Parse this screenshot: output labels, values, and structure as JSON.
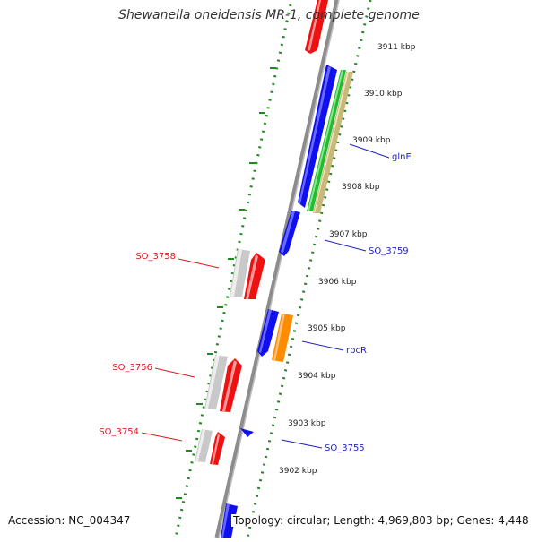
{
  "title": "Shewanella oneidensis MR-1, complete genome",
  "accession": "Accession: NC_004347",
  "topology": "Topology: circular; Length: 4,969,803 bp; Genes: 4,448",
  "colors": {
    "backbone": "#8c8c8c",
    "scale_dots": "#1e8a1e",
    "forward_label": "#1f1fc8",
    "reverse_label": "#d81b1b",
    "blue_gene": "#1010ee",
    "red_gene": "#ee1111",
    "green_gene": "#22bb33",
    "tan_gene": "#c8b87a",
    "orange_gene": "#ff8c00",
    "gray_gene": "#c9c9c9"
  },
  "scale_labels": [
    "3911 kbp",
    "3910 kbp",
    "3909 kbp",
    "3908 kbp",
    "3907 kbp",
    "3906 kbp",
    "3905 kbp",
    "3904 kbp",
    "3903 kbp",
    "3902 kbp"
  ],
  "gene_labels_forward": [
    "glnE",
    "SO_3759",
    "rbcR",
    "SO_3755"
  ],
  "gene_labels_reverse": [
    "SO_3758",
    "SO_3756",
    "SO_3754"
  ]
}
